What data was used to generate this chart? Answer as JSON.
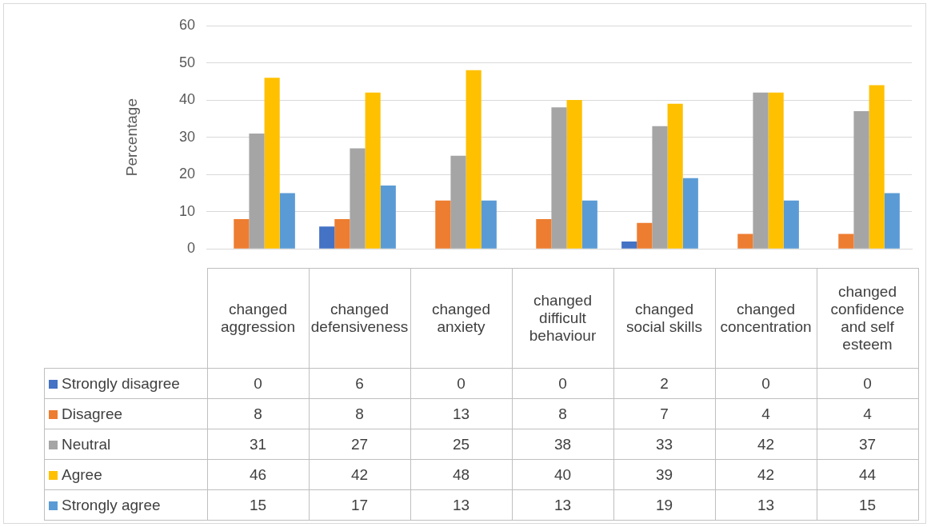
{
  "chart_data": {
    "type": "bar",
    "ylabel": "Percentage",
    "categories": [
      "changed aggression",
      "changed defensiveness",
      "changed anxiety",
      "changed difficult behaviour",
      "changed social skills",
      "changed concentration",
      "changed confidence and self esteem"
    ],
    "series": [
      {
        "name": "Strongly disagree",
        "color": "#4472c4",
        "values": [
          0,
          6,
          0,
          0,
          2,
          0,
          0
        ]
      },
      {
        "name": "Disagree",
        "color": "#ed7d31",
        "values": [
          8,
          8,
          13,
          8,
          7,
          4,
          4
        ]
      },
      {
        "name": "Neutral",
        "color": "#a5a5a5",
        "values": [
          31,
          27,
          25,
          38,
          33,
          42,
          37
        ]
      },
      {
        "name": "Agree",
        "color": "#ffc000",
        "values": [
          46,
          42,
          48,
          40,
          39,
          42,
          44
        ]
      },
      {
        "name": "Strongly agree",
        "color": "#5b9bd5",
        "values": [
          15,
          17,
          13,
          13,
          19,
          13,
          15
        ]
      }
    ],
    "ylim": [
      0,
      60
    ],
    "yticks": [
      0,
      10,
      20,
      30,
      40,
      50,
      60
    ],
    "grid": "y",
    "legend": "bottom",
    "data_labels": true
  }
}
